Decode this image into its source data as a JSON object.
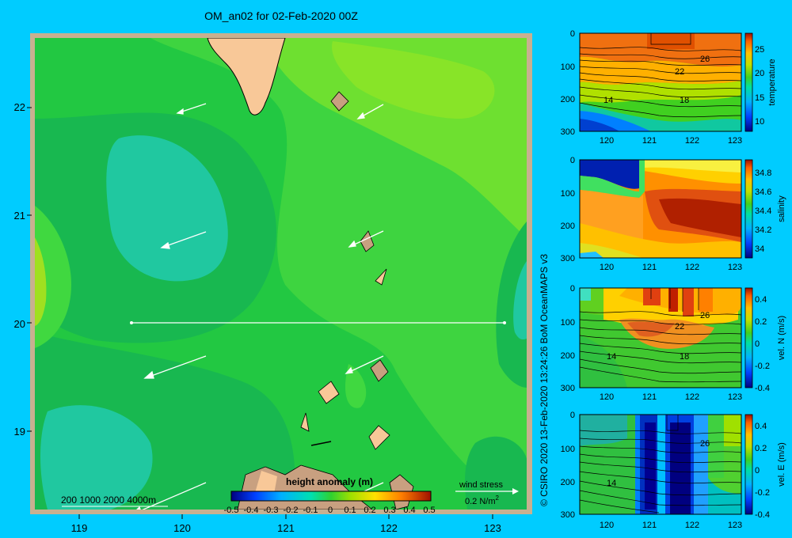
{
  "title": "OM_an02 for 02-Feb-2020 00Z",
  "credit": "© CSIRO 2020   13-Feb-2020 13:24:26 BoM OceanMAPS v3",
  "map": {
    "lat_ticks": [
      "22",
      "21",
      "20",
      "19"
    ],
    "lon_ticks": [
      "119",
      "120",
      "121",
      "122",
      "123"
    ],
    "scale_label": "200  1000  2000  4000m",
    "wind_label": "wind stress",
    "wind_scale": "0.2 N/m",
    "wind_scale_sup": "2"
  },
  "colorbar": {
    "title": "height anomaly  (m)",
    "ticks": [
      "-0.5",
      "-0.4",
      "-0.3",
      "-0.2",
      "-0.1",
      "0",
      "0.1",
      "0.2",
      "0.3",
      "0.4",
      "0.5"
    ]
  },
  "panels": [
    {
      "label": "temperature",
      "y_ticks": [
        "0",
        "100",
        "200",
        "300"
      ],
      "x_ticks": [
        "120",
        "121",
        "122",
        "123"
      ],
      "cb_ticks": [
        "25",
        "20",
        "15",
        "10"
      ],
      "contour_labels": [
        "26",
        "22",
        "18",
        "14"
      ]
    },
    {
      "label": "salinity",
      "y_ticks": [
        "0",
        "100",
        "200",
        "300"
      ],
      "x_ticks": [
        "120",
        "121",
        "122",
        "123"
      ],
      "cb_ticks": [
        "34.8",
        "34.6",
        "34.4",
        "34.2",
        "34"
      ],
      "contour_labels": []
    },
    {
      "label": "vel. N  (m/s)",
      "y_ticks": [
        "0",
        "100",
        "200",
        "300"
      ],
      "x_ticks": [
        "120",
        "121",
        "122",
        "123"
      ],
      "cb_ticks": [
        "0.4",
        "0.2",
        "0",
        "-0.2",
        "-0.4"
      ],
      "contour_labels": [
        "26",
        "22",
        "18",
        "14"
      ]
    },
    {
      "label": "vel. E  (m/s)",
      "y_ticks": [
        "0",
        "100",
        "200",
        "300"
      ],
      "x_ticks": [
        "120",
        "121",
        "122",
        "123"
      ],
      "cb_ticks": [
        "0.4",
        "0.2",
        "0",
        "-0.2",
        "-0.4"
      ],
      "contour_labels": [
        "26",
        "14"
      ]
    }
  ],
  "chart_data": [
    {
      "type": "heatmap",
      "title": "OM_an02 for 02-Feb-2020 00Z",
      "variable": "height anomaly (m)",
      "x_range": [
        118.5,
        123.5
      ],
      "y_range": [
        18.3,
        22.7
      ],
      "colorbar_range": [
        -0.5,
        0.5
      ],
      "section_line": {
        "lat": 20,
        "lon": [
          119.5,
          123.2
        ]
      }
    },
    {
      "type": "heatmap",
      "variable": "temperature",
      "x_range": [
        119.5,
        123.3
      ],
      "y_range": [
        300,
        0
      ],
      "colorbar_range": [
        8,
        28
      ],
      "contours": [
        26,
        22,
        18,
        14
      ]
    },
    {
      "type": "heatmap",
      "variable": "salinity",
      "x_range": [
        119.5,
        123.3
      ],
      "y_range": [
        300,
        0
      ],
      "colorbar_range": [
        33.85,
        34.9
      ]
    },
    {
      "type": "heatmap",
      "variable": "vel. N (m/s)",
      "x_range": [
        119.5,
        123.3
      ],
      "y_range": [
        300,
        0
      ],
      "colorbar_range": [
        -0.45,
        0.45
      ]
    },
    {
      "type": "heatmap",
      "variable": "vel. E (m/s)",
      "x_range": [
        119.5,
        123.3
      ],
      "y_range": [
        300,
        0
      ],
      "colorbar_range": [
        -0.45,
        0.45
      ]
    }
  ]
}
